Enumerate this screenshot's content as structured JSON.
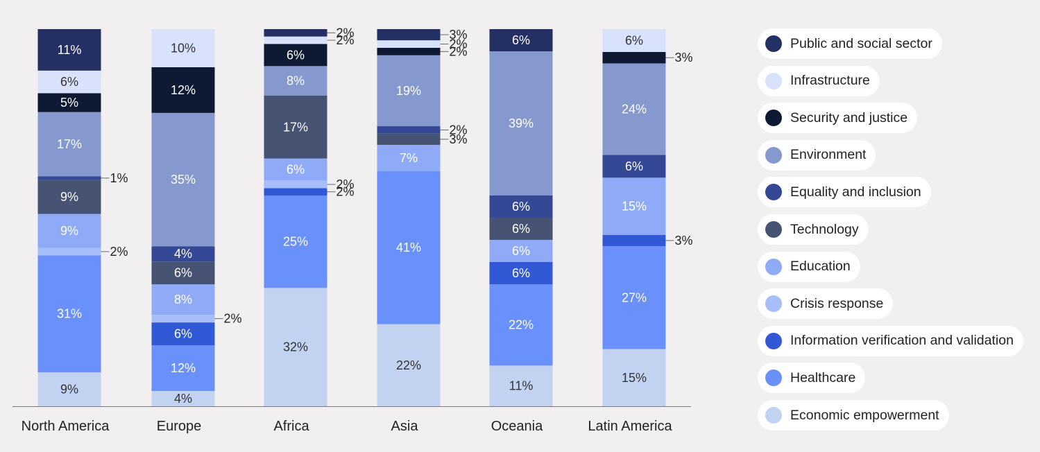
{
  "chart_data": {
    "type": "bar",
    "stacked": true,
    "ylim": [
      0,
      100
    ],
    "categories": [
      "North America",
      "Europe",
      "Africa",
      "Asia",
      "Oceania",
      "Latin America"
    ],
    "series": [
      {
        "name": "Economic empowerment",
        "color": "#c2d3f1",
        "values": [
          9,
          4,
          32,
          22,
          11,
          15
        ],
        "labels": [
          "9%",
          "4%",
          "32%",
          "22%",
          "11%",
          "15%"
        ]
      },
      {
        "name": "Healthcare",
        "color": "#6a90fb",
        "values": [
          31,
          12,
          25,
          41,
          22,
          27
        ],
        "labels": [
          "31%",
          "12%",
          "25%",
          "41%",
          "22%",
          "27%"
        ]
      },
      {
        "name": "Information verification and validation",
        "color": "#3159d5",
        "values": [
          0,
          6,
          2,
          0,
          6,
          3
        ],
        "labels": [
          "",
          "6%",
          "2%",
          "",
          "6%",
          "3%"
        ]
      },
      {
        "name": "Crisis response",
        "color": "#a8bef8",
        "values": [
          2,
          2,
          2,
          0,
          0,
          0
        ],
        "labels": [
          "2%",
          "2%",
          "2%",
          "",
          "",
          ""
        ]
      },
      {
        "name": "Education",
        "color": "#8fabf7",
        "values": [
          9,
          8,
          6,
          7,
          6,
          15
        ],
        "labels": [
          "9%",
          "8%",
          "6%",
          "7%",
          "6%",
          "15%"
        ]
      },
      {
        "name": "Technology",
        "color": "#475373",
        "values": [
          9,
          6,
          17,
          3,
          6,
          0
        ],
        "labels": [
          "9%",
          "6%",
          "17%",
          "3%",
          "6%",
          ""
        ]
      },
      {
        "name": "Equality and inclusion",
        "color": "#344896",
        "values": [
          1,
          4,
          0,
          2,
          6,
          6
        ],
        "labels": [
          "1%",
          "4%",
          "",
          "2%",
          "6%",
          "6%"
        ]
      },
      {
        "name": "Environment",
        "color": "#8599cf",
        "values": [
          17,
          35,
          8,
          19,
          39,
          24
        ],
        "labels": [
          "17%",
          "35%",
          "8%",
          "19%",
          "39%",
          "24%"
        ]
      },
      {
        "name": "Security and justice",
        "color": "#0e1a33",
        "values": [
          5,
          12,
          6,
          2,
          0,
          3
        ],
        "labels": [
          "5%",
          "12%",
          "6%",
          "2%",
          "",
          "3%"
        ]
      },
      {
        "name": "Infrastructure",
        "color": "#d9e2fb",
        "values": [
          6,
          10,
          2,
          2,
          0,
          6
        ],
        "labels": [
          "6%",
          "10%",
          "2%",
          "2%",
          "",
          "6%"
        ]
      },
      {
        "name": "Public and social sector",
        "color": "#243063",
        "values": [
          11,
          0,
          2,
          3,
          6,
          0
        ],
        "labels": [
          "11%",
          "",
          "2%",
          "3%",
          "6%",
          ""
        ]
      }
    ],
    "legend_position": "right",
    "grid": false
  }
}
